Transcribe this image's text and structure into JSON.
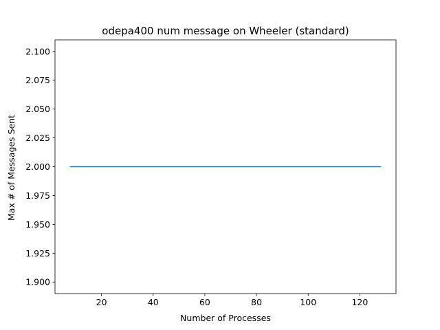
{
  "chart_data": {
    "type": "line",
    "title": "odepa400 num message on Wheeler (standard)",
    "xlabel": "Number of Processes",
    "ylabel": "Max # of Messages Sent",
    "xlim": [
      2,
      134
    ],
    "ylim": [
      1.89,
      2.11
    ],
    "xticks": [
      20,
      40,
      60,
      80,
      100,
      120
    ],
    "xtick_labels": [
      "20",
      "40",
      "60",
      "80",
      "100",
      "120"
    ],
    "yticks": [
      1.9,
      1.925,
      1.95,
      1.975,
      2.0,
      2.025,
      2.05,
      2.075,
      2.1
    ],
    "ytick_labels": [
      "1.900",
      "1.925",
      "1.950",
      "1.975",
      "2.000",
      "2.025",
      "2.050",
      "2.075",
      "2.100"
    ],
    "grid": false,
    "series": [
      {
        "x": [
          8,
          16,
          32,
          64,
          128
        ],
        "y": [
          2,
          2,
          2,
          2,
          2
        ],
        "color": "#1f77b4"
      }
    ]
  }
}
